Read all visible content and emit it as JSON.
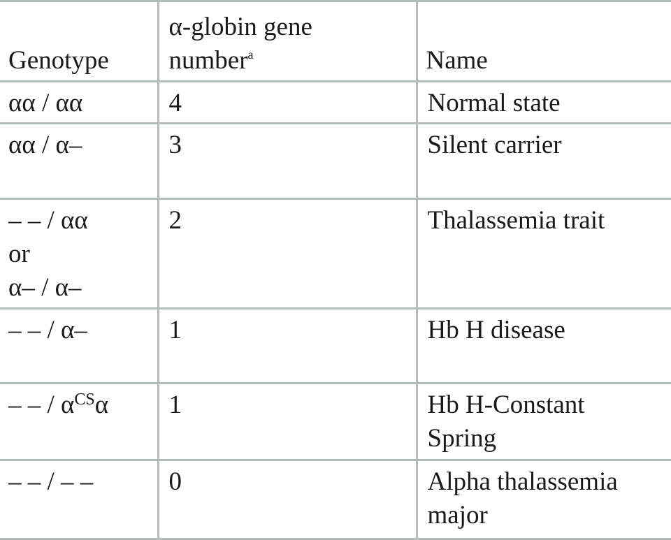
{
  "table": {
    "header": {
      "genotype": "Genotype",
      "gene_number_line1": "α-globin gene",
      "gene_number_line2": "number",
      "gene_number_footnote": "a",
      "name": "Name"
    },
    "rows": [
      {
        "genotype_lines": [
          "αα / αα"
        ],
        "gene_number": "4",
        "name_lines": [
          "Normal state"
        ]
      },
      {
        "genotype_lines": [
          "αα / α–"
        ],
        "gene_number": "3",
        "name_lines": [
          "Silent carrier"
        ]
      },
      {
        "genotype_lines": [
          "– – / αα",
          "or",
          "α– / α–"
        ],
        "gene_number": "2",
        "name_lines": [
          "Thalassemia trait"
        ]
      },
      {
        "genotype_lines": [
          "– – / α–"
        ],
        "gene_number": "1",
        "name_lines": [
          "Hb H disease"
        ]
      },
      {
        "genotype_prefix": "– – / α",
        "genotype_sup": "CS",
        "genotype_suffix": "α",
        "gene_number": "1",
        "name_lines": [
          "Hb H-Constant",
          "Spring"
        ]
      },
      {
        "genotype_lines": [
          "– – / – –"
        ],
        "gene_number": "0",
        "name_lines": [
          "Alpha thalassemia",
          "major"
        ]
      }
    ]
  }
}
